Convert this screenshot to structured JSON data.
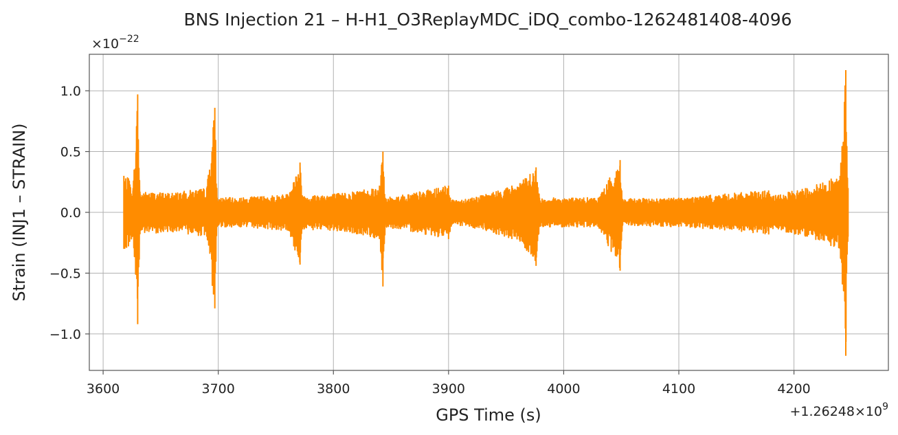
{
  "chart_data": {
    "type": "line",
    "title": "BNS Injection 21 – H-H1_O3ReplayMDC_iDQ_combo-1262481408-4096",
    "xlabel": "GPS Time (s)",
    "ylabel": "Strain (INJ1 – STRAIN)",
    "x_offset_label": "+1.26248×10",
    "x_offset_exponent": "9",
    "y_scale_label": "×10",
    "y_scale_exponent": "−22",
    "xlim": [
      3588,
      4282
    ],
    "ylim": [
      -1.3,
      1.3
    ],
    "x_ticks": [
      3600,
      3700,
      3800,
      3900,
      4000,
      4100,
      4200
    ],
    "x_tick_labels": [
      "3600",
      "3700",
      "3800",
      "3900",
      "4000",
      "4100",
      "4200"
    ],
    "y_ticks": [
      1.0,
      0.5,
      0.0,
      -0.5,
      -1.0
    ],
    "y_tick_labels": [
      "1.0",
      "0.5",
      "0.0",
      "−0.5",
      "−1.0"
    ],
    "grid": true,
    "line_color": "#ff8c00",
    "series": [
      {
        "x_range": [
          3618,
          4247
        ],
        "envelope": [
          {
            "x": 3618,
            "upper": 0.3,
            "lower": -0.3
          },
          {
            "x": 3622,
            "upper": 0.28,
            "lower": -0.28
          },
          {
            "x": 3626,
            "upper": 0.2,
            "lower": -0.2
          },
          {
            "x": 3630,
            "upper": 0.97,
            "lower": -0.92
          },
          {
            "x": 3632,
            "upper": 0.17,
            "lower": -0.18
          },
          {
            "x": 3660,
            "upper": 0.16,
            "lower": -0.16
          },
          {
            "x": 3690,
            "upper": 0.2,
            "lower": -0.2
          },
          {
            "x": 3697,
            "upper": 0.86,
            "lower": -0.79
          },
          {
            "x": 3699,
            "upper": 0.12,
            "lower": -0.12
          },
          {
            "x": 3720,
            "upper": 0.12,
            "lower": -0.12
          },
          {
            "x": 3760,
            "upper": 0.15,
            "lower": -0.15
          },
          {
            "x": 3771,
            "upper": 0.41,
            "lower": -0.43
          },
          {
            "x": 3773,
            "upper": 0.14,
            "lower": -0.14
          },
          {
            "x": 3810,
            "upper": 0.16,
            "lower": -0.16
          },
          {
            "x": 3840,
            "upper": 0.22,
            "lower": -0.22
          },
          {
            "x": 3843,
            "upper": 0.5,
            "lower": -0.61
          },
          {
            "x": 3845,
            "upper": 0.12,
            "lower": -0.12
          },
          {
            "x": 3870,
            "upper": 0.16,
            "lower": -0.16
          },
          {
            "x": 3900,
            "upper": 0.22,
            "lower": -0.22
          },
          {
            "x": 3903,
            "upper": 0.1,
            "lower": -0.1
          },
          {
            "x": 3930,
            "upper": 0.14,
            "lower": -0.14
          },
          {
            "x": 3955,
            "upper": 0.22,
            "lower": -0.22
          },
          {
            "x": 3962,
            "upper": 0.24,
            "lower": -0.24
          },
          {
            "x": 3976,
            "upper": 0.37,
            "lower": -0.44
          },
          {
            "x": 3979,
            "upper": 0.12,
            "lower": -0.12
          },
          {
            "x": 4030,
            "upper": 0.12,
            "lower": -0.12
          },
          {
            "x": 4049,
            "upper": 0.43,
            "lower": -0.48
          },
          {
            "x": 4051,
            "upper": 0.11,
            "lower": -0.11
          },
          {
            "x": 4100,
            "upper": 0.12,
            "lower": -0.12
          },
          {
            "x": 4178,
            "upper": 0.18,
            "lower": -0.18
          },
          {
            "x": 4180,
            "upper": 0.13,
            "lower": -0.13
          },
          {
            "x": 4210,
            "upper": 0.2,
            "lower": -0.2
          },
          {
            "x": 4240,
            "upper": 0.3,
            "lower": -0.3
          },
          {
            "x": 4245,
            "upper": 1.17,
            "lower": -1.18
          },
          {
            "x": 4247,
            "upper": 0.2,
            "lower": -0.2
          }
        ]
      }
    ]
  }
}
